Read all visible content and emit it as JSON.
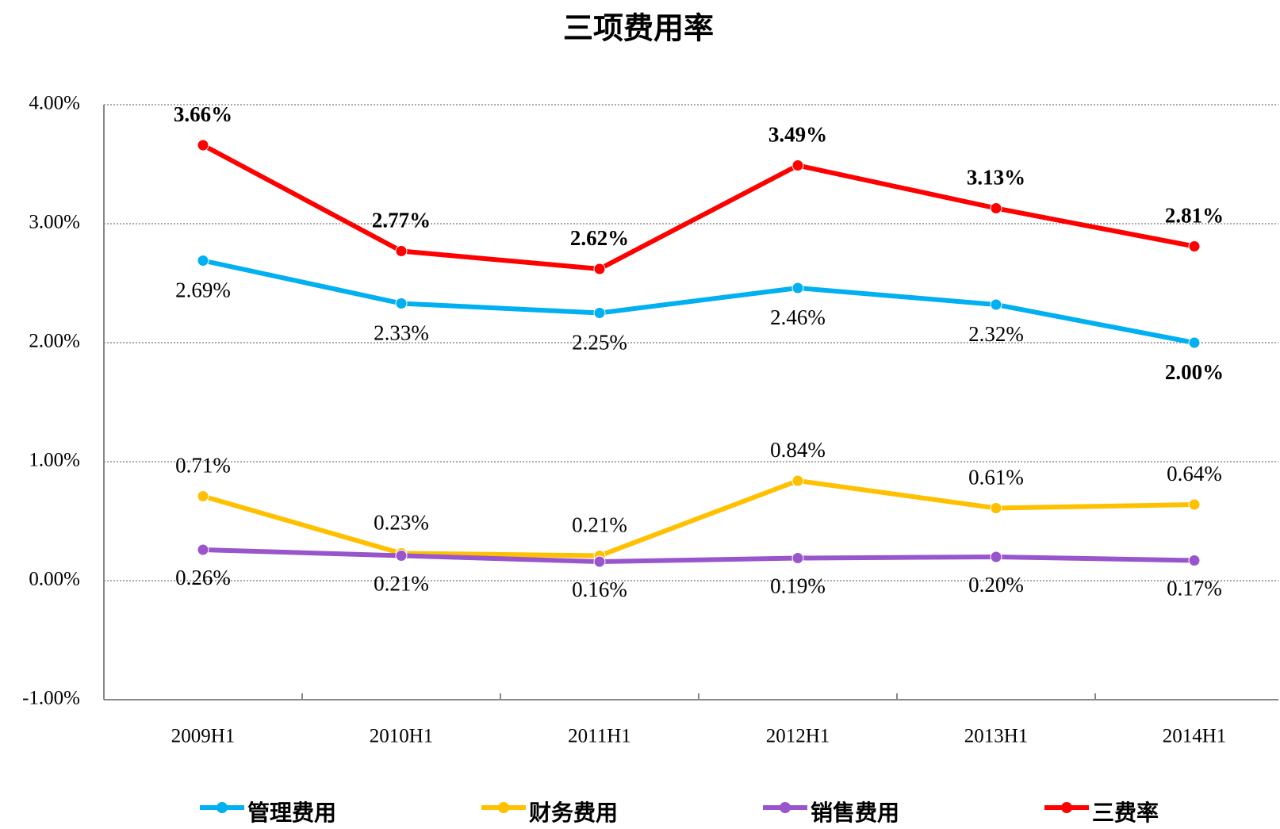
{
  "chart_data": {
    "type": "line",
    "title": "三项费用率",
    "categories": [
      "2009H1",
      "2010H1",
      "2011H1",
      "2012H1",
      "2013H1",
      "2014H1"
    ],
    "ylim": [
      -1,
      4
    ],
    "yticks": [
      {
        "value": -1,
        "label": "-1.00%"
      },
      {
        "value": 0,
        "label": "0.00%"
      },
      {
        "value": 1,
        "label": "1.00%"
      },
      {
        "value": 2,
        "label": "2.00%"
      },
      {
        "value": 3,
        "label": "3.00%"
      },
      {
        "value": 4,
        "label": "4.00%"
      }
    ],
    "grid": true,
    "legend": "bottom",
    "series": [
      {
        "name": "管理费用",
        "color": "#00b0f0",
        "values": [
          2.69,
          2.33,
          2.25,
          2.46,
          2.32,
          2.0
        ],
        "value_labels": [
          "2.69%",
          "2.33%",
          "2.25%",
          "2.46%",
          "2.32%",
          "2.00%"
        ]
      },
      {
        "name": "财务费用",
        "color": "#ffc000",
        "values": [
          0.71,
          0.23,
          0.21,
          0.84,
          0.61,
          0.64
        ],
        "value_labels": [
          "0.71%",
          "0.23%",
          "0.21%",
          "0.84%",
          "0.61%",
          "0.64%"
        ]
      },
      {
        "name": "销售费用",
        "color": "#9955cc",
        "values": [
          0.26,
          0.21,
          0.16,
          0.19,
          0.2,
          0.17
        ],
        "value_labels": [
          "0.26%",
          "0.21%",
          "0.16%",
          "0.19%",
          "0.20%",
          "0.17%"
        ]
      },
      {
        "name": "三费率",
        "color": "#ff0000",
        "values": [
          3.66,
          2.77,
          2.62,
          3.49,
          3.13,
          2.81
        ],
        "value_labels": [
          "3.66%",
          "2.77%",
          "2.62%",
          "3.49%",
          "3.13%",
          "2.81%"
        ]
      }
    ]
  }
}
